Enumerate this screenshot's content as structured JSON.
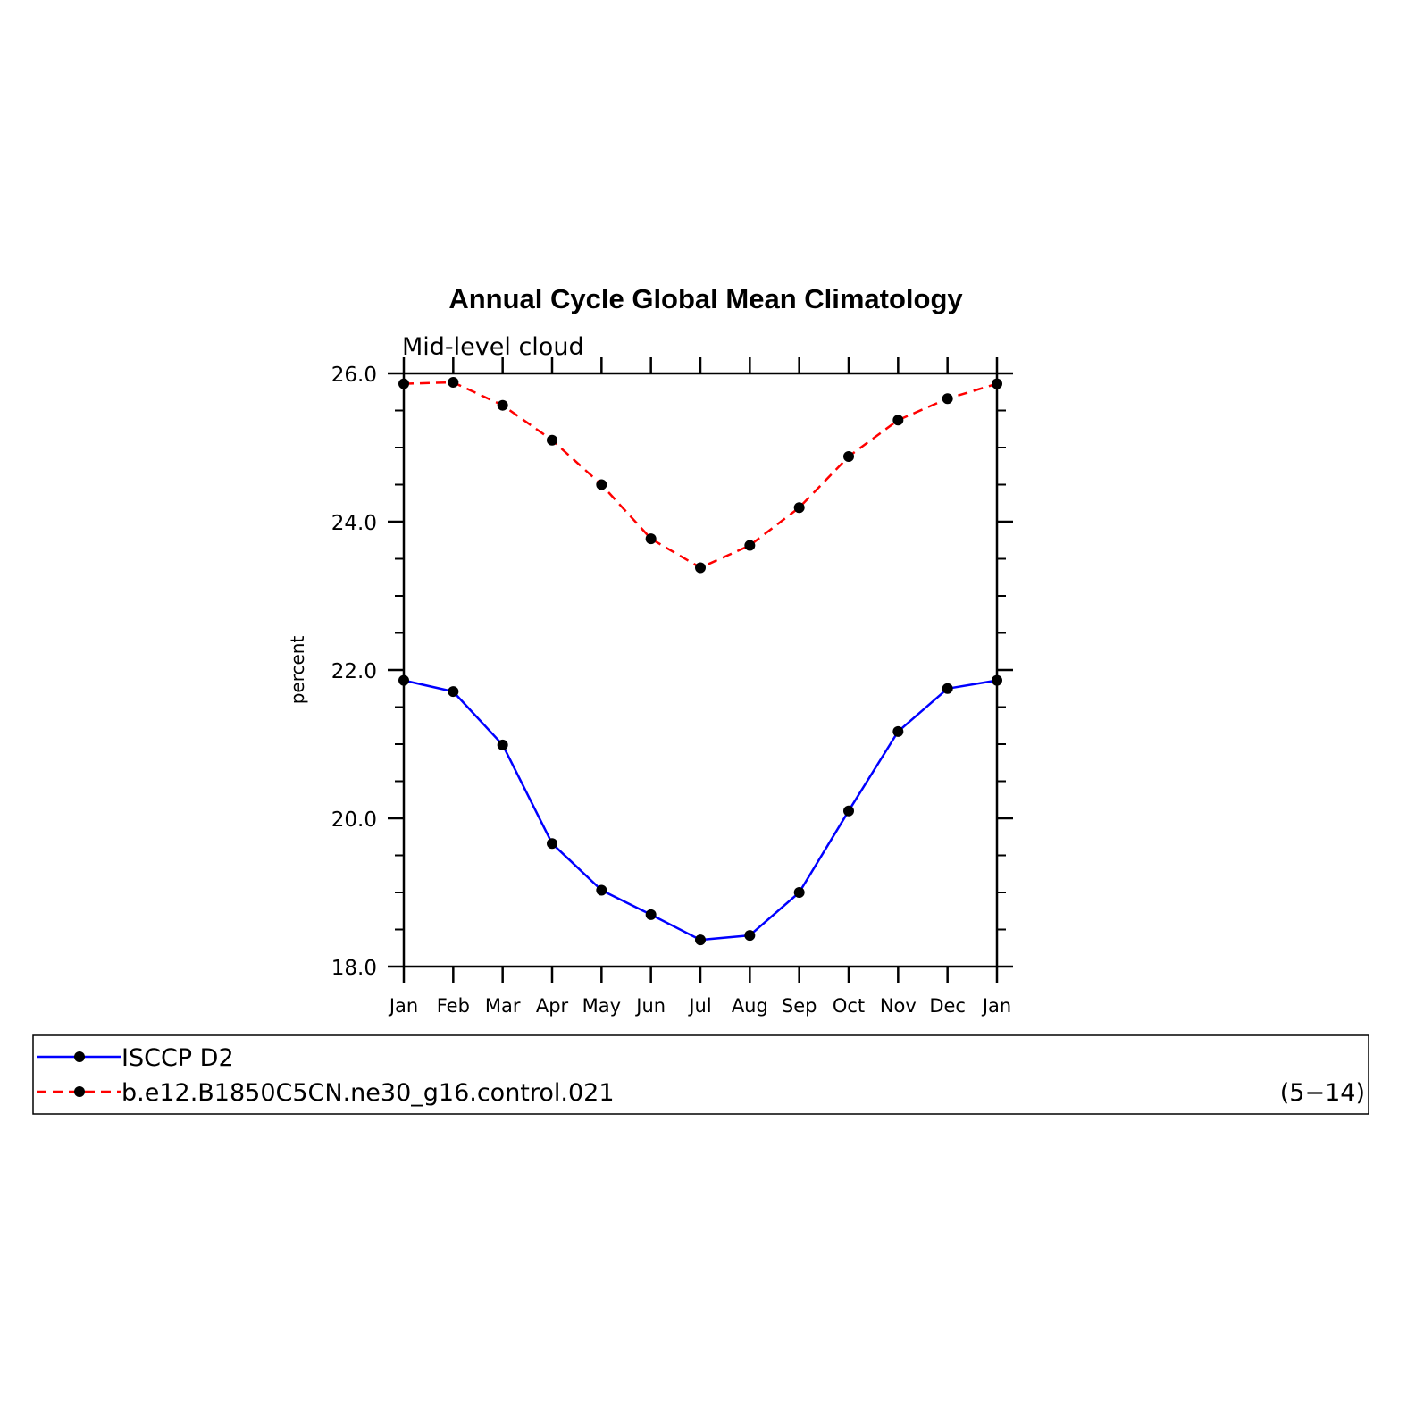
{
  "chart_data": {
    "type": "line",
    "title": "Annual Cycle Global Mean Climatology",
    "subtitle": "Mid-level cloud",
    "xlabel": "",
    "ylabel": "percent",
    "categories": [
      "Jan",
      "Feb",
      "Mar",
      "Apr",
      "May",
      "Jun",
      "Jul",
      "Aug",
      "Sep",
      "Oct",
      "Nov",
      "Dec",
      "Jan"
    ],
    "ylim": [
      18.0,
      26.0
    ],
    "yticks": [
      18.0,
      20.0,
      22.0,
      24.0,
      26.0
    ],
    "ytick_labels": [
      "18.0",
      "20.0",
      "22.0",
      "24.0",
      "26.0"
    ],
    "series": [
      {
        "name": "ISCCP D2",
        "color": "#0000ff",
        "style": "solid",
        "values": [
          21.86,
          21.71,
          20.99,
          19.66,
          19.03,
          18.7,
          18.36,
          18.42,
          19.0,
          20.1,
          21.17,
          21.75,
          21.86
        ]
      },
      {
        "name": "b.e12.B1850C5CN.ne30_g16.control.021",
        "color": "#ff0000",
        "style": "dashed",
        "values": [
          25.86,
          25.88,
          25.57,
          25.1,
          24.5,
          23.77,
          23.38,
          23.68,
          24.19,
          24.88,
          25.37,
          25.66,
          25.86
        ]
      }
    ],
    "legend_placement": "bottom",
    "legend_note": "(5−14)"
  }
}
